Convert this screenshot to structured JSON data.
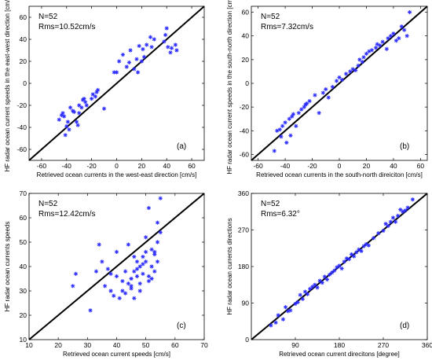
{
  "chart_data": [
    {
      "type": "scatter",
      "panel_label": "(a)",
      "xlabel": "Retrieved ocean currents in the west-east direction [cm/s]",
      "ylabel": "HF radar ocean current speeds in the east-west direction [cm/s]",
      "xlim": [
        -70,
        70
      ],
      "ylim": [
        -70,
        70
      ],
      "xticks": [
        -60,
        -40,
        -20,
        0,
        20,
        40,
        60
      ],
      "yticks": [
        -60,
        -40,
        -20,
        0,
        20,
        40,
        60
      ],
      "annotations": [
        "N=52",
        "Rms=10.52cm/s"
      ],
      "marker_color": "#2a2aff",
      "reference_line": "y = x",
      "x": [
        -46,
        -44,
        -43,
        -42,
        -41,
        -40,
        -39,
        -38,
        -37,
        -35,
        -34,
        -32,
        -31,
        -30,
        -30,
        -28,
        -27,
        -26,
        -25,
        -24,
        -20,
        -19,
        -17,
        -16,
        -15,
        -10,
        -2,
        0,
        2,
        5,
        8,
        10,
        11,
        14,
        16,
        17,
        18,
        20,
        21,
        22,
        24,
        27,
        28,
        30,
        38,
        39,
        40,
        41,
        43,
        44,
        47,
        48
      ],
      "y": [
        -33,
        -29,
        -27,
        -30,
        -47,
        -39,
        -35,
        -42,
        -22,
        -25,
        -26,
        -35,
        -38,
        -27,
        -20,
        -22,
        -15,
        -14,
        -17,
        -20,
        -14,
        -10,
        -12,
        -8,
        -6,
        -23,
        10,
        10,
        20,
        26,
        15,
        19,
        30,
        13,
        22,
        10,
        34,
        20,
        31,
        24,
        35,
        42,
        33,
        40,
        38,
        44,
        50,
        33,
        28,
        32,
        35,
        30
      ]
    },
    {
      "type": "scatter",
      "panel_label": "(b)",
      "xlabel": "Retrieved ocean currents in the south-north direiciton [cm/s]",
      "ylabel": "HF radar ocean current speeds in the south-north direction [cm/s]",
      "xlim": [
        -65,
        65
      ],
      "ylim": [
        -65,
        65
      ],
      "xticks": [
        -60,
        -40,
        -20,
        0,
        20,
        40,
        60
      ],
      "yticks": [
        -60,
        -40,
        -20,
        0,
        20,
        40,
        60
      ],
      "annotations": [
        "N=52",
        "Rms=7.32cm/s"
      ],
      "marker_color": "#2a2aff",
      "reference_line": "y = x",
      "x": [
        -48,
        -46,
        -44,
        -43,
        -42,
        -40,
        -39,
        -37,
        -36,
        -35,
        -34,
        -32,
        -30,
        -28,
        -26,
        -25,
        -24,
        -22,
        -18,
        -15,
        -12,
        -10,
        -8,
        -5,
        -2,
        0,
        2,
        5,
        8,
        10,
        12,
        14,
        15,
        17,
        18,
        20,
        22,
        24,
        27,
        28,
        30,
        32,
        35,
        36,
        38,
        40,
        42,
        44,
        46,
        48,
        50,
        52
      ],
      "y": [
        -57,
        -40,
        -39,
        -45,
        -36,
        -33,
        -50,
        -30,
        -44,
        -28,
        -26,
        -36,
        -25,
        -22,
        -20,
        -18,
        -17,
        -15,
        -10,
        -25,
        -8,
        -5,
        -12,
        -3,
        2,
        5,
        3,
        8,
        10,
        12,
        11,
        15,
        20,
        18,
        22,
        25,
        27,
        28,
        30,
        33,
        32,
        35,
        29,
        38,
        40,
        42,
        36,
        38,
        48,
        45,
        40,
        60
      ]
    },
    {
      "type": "scatter",
      "panel_label": "(c)",
      "xlabel": "Retrieved ocean current speeds  [cm/s]",
      "ylabel": "HF radar ocean currents speeds",
      "xlim": [
        10,
        70
      ],
      "ylim": [
        10,
        70
      ],
      "xticks": [
        10,
        20,
        30,
        40,
        50,
        60,
        70
      ],
      "yticks": [
        10,
        20,
        30,
        40,
        50,
        60,
        70
      ],
      "annotations": [
        "N=52",
        "Rms=12.42cm/s"
      ],
      "marker_color": "#2a2aff",
      "reference_line": "y = x",
      "x": [
        25,
        26,
        31,
        33,
        34,
        35,
        36,
        37,
        38,
        39,
        40,
        40,
        41,
        42,
        42,
        43,
        43,
        44,
        44,
        45,
        45,
        46,
        46,
        47,
        47,
        48,
        48,
        49,
        49,
        50,
        50,
        50,
        51,
        51,
        52,
        52,
        52,
        53,
        53,
        54,
        54,
        55,
        55,
        49,
        46,
        47,
        53,
        54,
        38,
        45,
        48,
        51
      ],
      "y": [
        32,
        37,
        22,
        38,
        49,
        42,
        32,
        39,
        30,
        28,
        36,
        46,
        27,
        30,
        34,
        38,
        29,
        33,
        49,
        35,
        32,
        27,
        38,
        36,
        42,
        30,
        40,
        44,
        37,
        42,
        46,
        52,
        64,
        34,
        35,
        47,
        40,
        38,
        45,
        42,
        58,
        54,
        68,
        41,
        44,
        39,
        46,
        50,
        37,
        31,
        33,
        36
      ]
    },
    {
      "type": "scatter",
      "panel_label": "(d)",
      "xlabel": "Retrieved ocean current  direcitons [degree]",
      "ylabel": "HF radar ocean currents directions",
      "xlim": [
        0,
        360
      ],
      "ylim": [
        0,
        360
      ],
      "xticks": [
        90,
        180,
        270,
        360
      ],
      "yticks": [
        0,
        90,
        180,
        270,
        360
      ],
      "annotations": [
        "N=52",
        "Rms=6.32°"
      ],
      "marker_color": "#2a2aff",
      "reference_line": "y = x",
      "x": [
        40,
        50,
        55,
        65,
        70,
        75,
        80,
        90,
        95,
        100,
        105,
        110,
        115,
        120,
        125,
        130,
        135,
        140,
        145,
        150,
        155,
        160,
        165,
        170,
        175,
        180,
        185,
        190,
        195,
        200,
        205,
        210,
        215,
        220,
        225,
        230,
        235,
        240,
        250,
        260,
        270,
        275,
        280,
        285,
        290,
        295,
        300,
        305,
        310,
        315,
        320,
        330
      ],
      "y": [
        35,
        42,
        60,
        50,
        80,
        70,
        72,
        88,
        92,
        110,
        100,
        118,
        112,
        125,
        130,
        135,
        128,
        145,
        140,
        155,
        148,
        160,
        165,
        170,
        178,
        182,
        175,
        192,
        200,
        198,
        210,
        205,
        215,
        222,
        218,
        230,
        235,
        232,
        250,
        262,
        268,
        285,
        280,
        290,
        300,
        290,
        305,
        320,
        315,
        318,
        325,
        345
      ]
    }
  ]
}
